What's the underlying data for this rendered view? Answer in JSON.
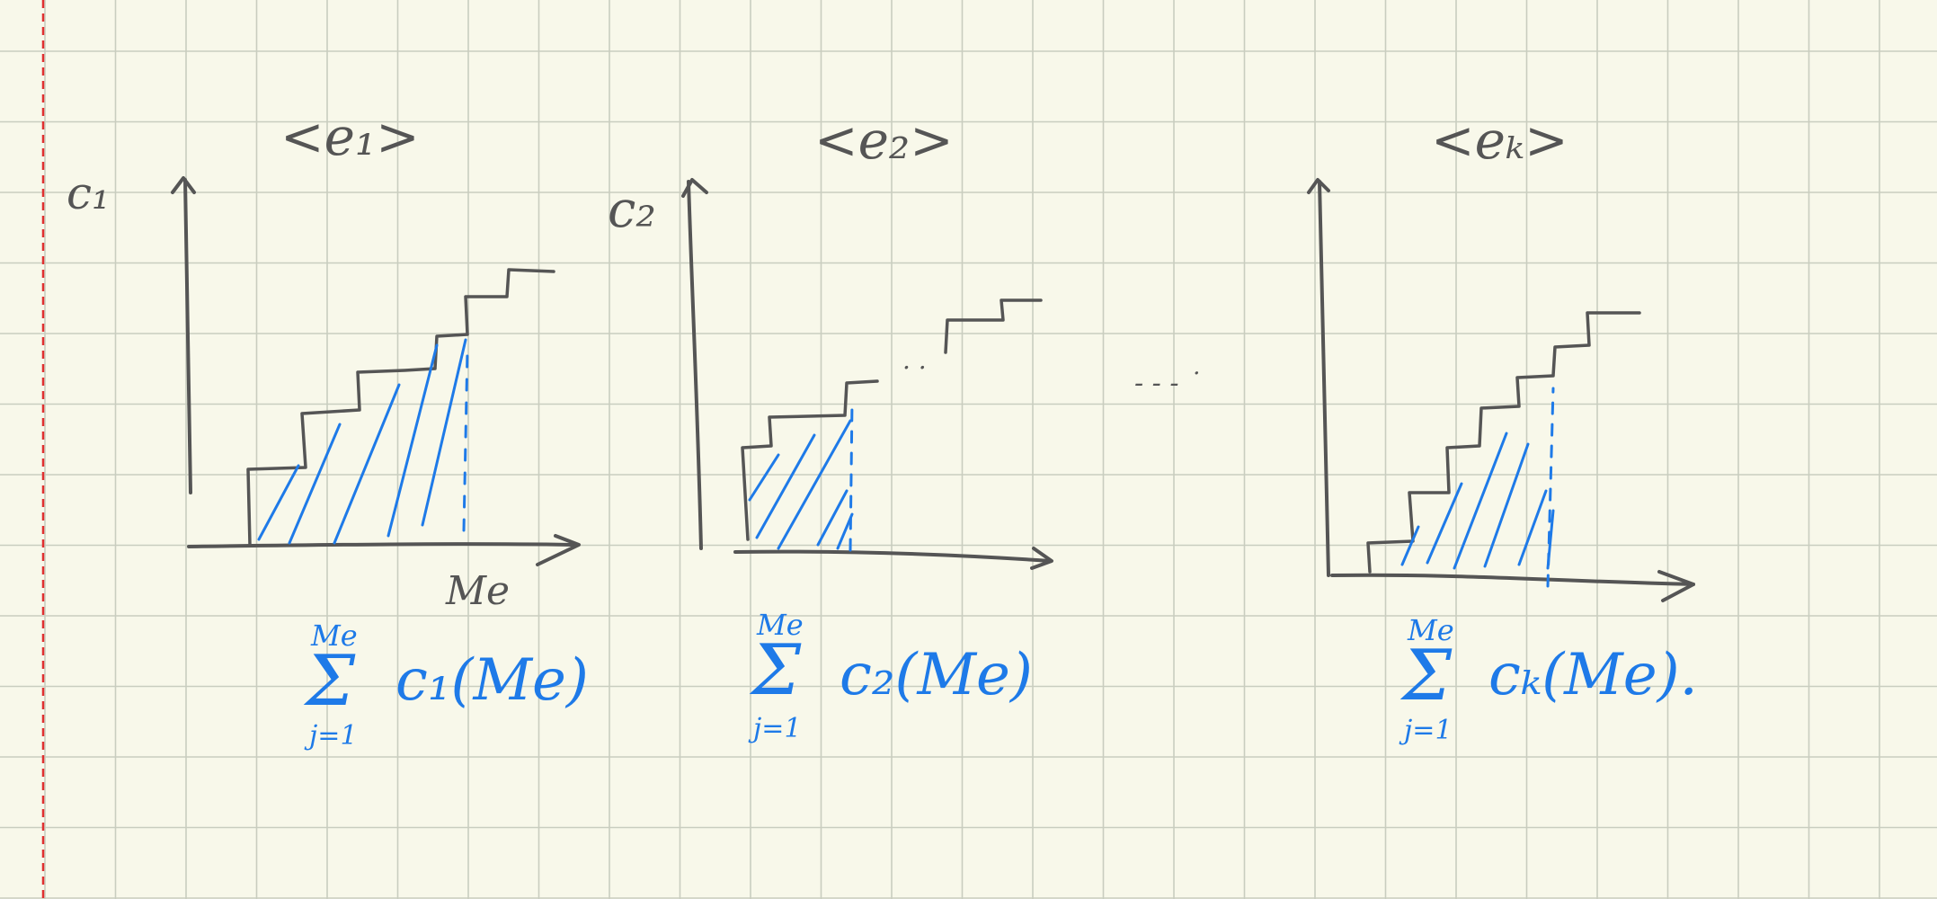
{
  "colors": {
    "paper": "#f8f8ea",
    "grid": "#c9cdbf",
    "margin_line": "#e03030",
    "pencil": "#555555",
    "blue_ink": "#1e7ae8"
  },
  "panel1": {
    "title": "<e₁>",
    "axis_label": "c₁",
    "x_label": "Me",
    "formula": {
      "sum_symbol": "Σ",
      "upper": "Me",
      "lower": "j=1",
      "term": "c₁(Me)"
    }
  },
  "panel2": {
    "title": "<e₂>",
    "axis_label": "c₂",
    "ellipsis": ". .",
    "formula": {
      "sum_symbol": "Σ",
      "upper": "Me",
      "lower": "j=1",
      "term": "c₂(Me)"
    }
  },
  "panel_k": {
    "title": "<eₖ>",
    "formula": {
      "sum_symbol": "Σ",
      "upper": "Me",
      "lower": "j=1",
      "term": "cₖ(Me)."
    }
  },
  "between_panels_ellipsis": "- - - ˙"
}
